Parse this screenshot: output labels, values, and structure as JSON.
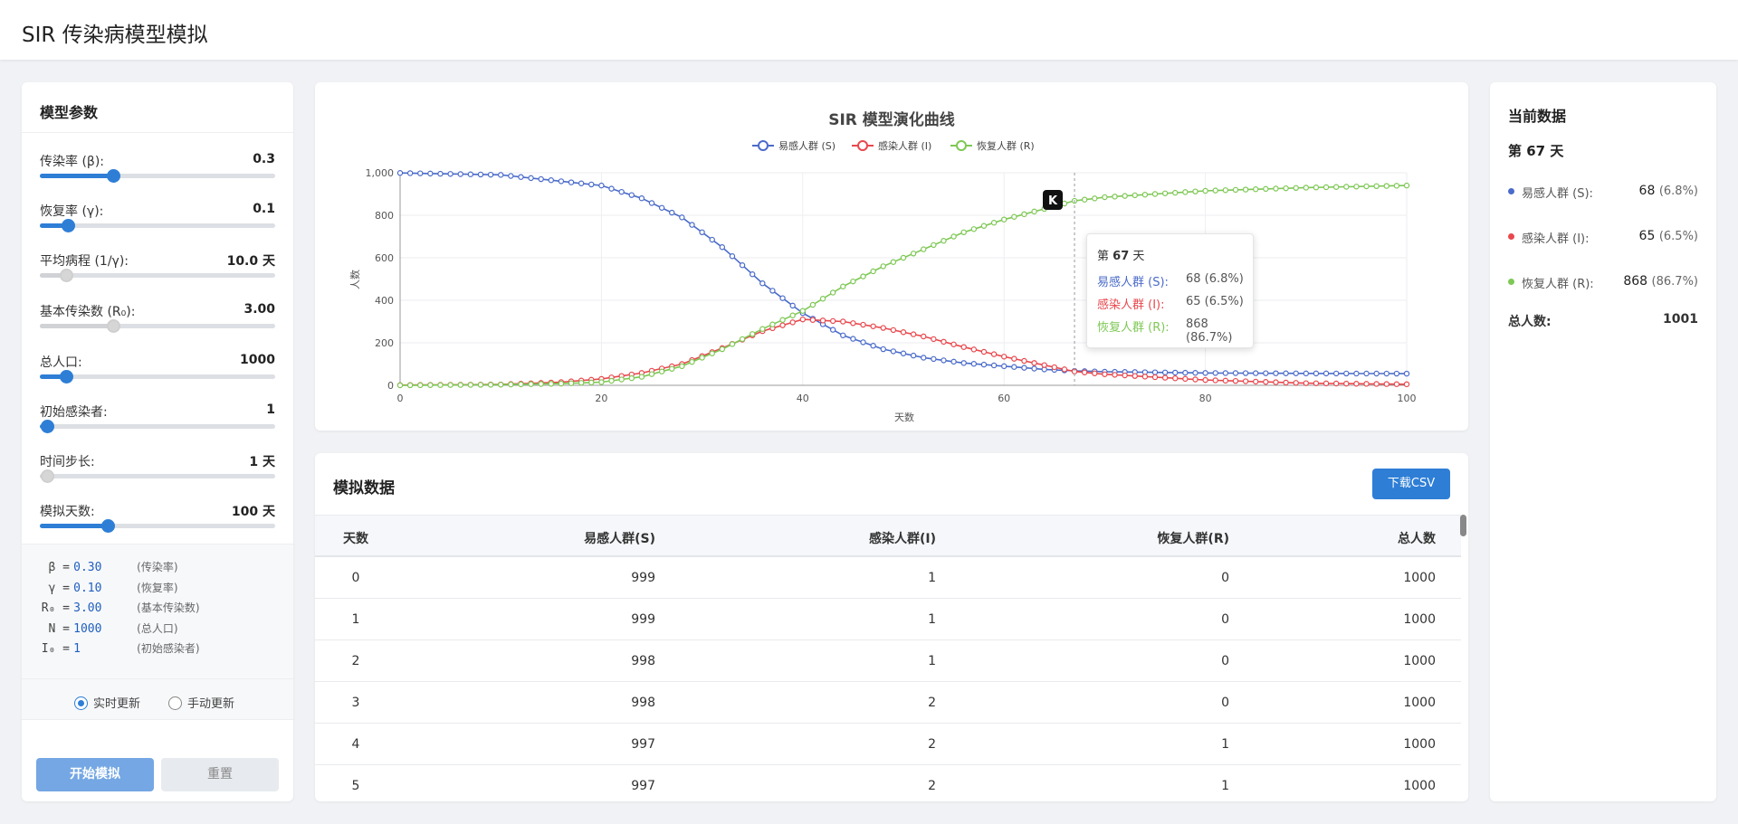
{
  "app": {
    "title": "SIR 传染病模型模拟"
  },
  "params": {
    "title": "模型参数",
    "items": [
      {
        "label": "传染率 (β):",
        "value": "0.3",
        "fraction": 0.31,
        "disabled": false
      },
      {
        "label": "恢复率 (γ):",
        "value": "0.1",
        "fraction": 0.12,
        "disabled": false
      },
      {
        "label": "平均病程 (1/γ):",
        "value": "10.0 天",
        "fraction": 0.11,
        "disabled": true
      },
      {
        "label": "基本传染数 (R₀):",
        "value": "3.00",
        "fraction": 0.31,
        "disabled": true
      },
      {
        "label": "总人口:",
        "value": "1000",
        "fraction": 0.11,
        "disabled": false
      },
      {
        "label": "初始感染者:",
        "value": "1",
        "fraction": 0.03,
        "disabled": false
      },
      {
        "label": "时间步长:",
        "value": "1 天",
        "fraction": 0.03,
        "disabled": true
      },
      {
        "label": "模拟天数:",
        "value": "100 天",
        "fraction": 0.29,
        "disabled": false
      }
    ],
    "equations": [
      {
        "sym": "β =",
        "val": "0.30",
        "desc": "(传染率)"
      },
      {
        "sym": "γ =",
        "val": "0.10",
        "desc": "(恢复率)"
      },
      {
        "sym": "R₀ =",
        "val": "3.00",
        "desc": "(基本传染数)"
      },
      {
        "sym": "N =",
        "val": "1000",
        "desc": "(总人口)"
      },
      {
        "sym": "I₀ =",
        "val": "1",
        "desc": "(初始感染者)"
      }
    ],
    "mode_realtime": "实时更新",
    "mode_manual": "手动更新",
    "start_label": "开始模拟",
    "reset_label": "重置"
  },
  "chart_data": {
    "type": "line",
    "title": "SIR 模型演化曲线",
    "xlabel": "天数",
    "ylabel": "人数",
    "xlim": [
      0,
      100
    ],
    "ylim": [
      0,
      1000
    ],
    "x_ticks": [
      "0",
      "20",
      "40",
      "60",
      "80",
      "100"
    ],
    "y_ticks": [
      "0",
      "200",
      "400",
      "600",
      "800",
      "1,000"
    ],
    "legend_position": "top-center",
    "series": [
      {
        "name": "易感人群 (S)",
        "color": "#4a6bc9",
        "x": [
          0,
          10,
          20,
          24,
          28,
          32,
          36,
          40,
          44,
          48,
          52,
          56,
          60,
          64,
          67,
          70,
          80,
          90,
          100
        ],
        "values": [
          999,
          990,
          940,
          880,
          790,
          650,
          480,
          340,
          235,
          170,
          130,
          105,
          90,
          75,
          68,
          64,
          58,
          56,
          55
        ]
      },
      {
        "name": "感染人群 (I)",
        "color": "#e8484d",
        "x": [
          0,
          10,
          16,
          20,
          24,
          28,
          32,
          36,
          40,
          44,
          48,
          52,
          56,
          60,
          64,
          67,
          70,
          80,
          90,
          100
        ],
        "values": [
          1,
          4,
          15,
          30,
          58,
          100,
          175,
          255,
          310,
          300,
          270,
          230,
          180,
          135,
          95,
          65,
          52,
          25,
          10,
          5
        ]
      },
      {
        "name": "恢复人群 (R)",
        "color": "#7ec855",
        "x": [
          0,
          10,
          16,
          20,
          24,
          28,
          32,
          36,
          40,
          44,
          48,
          52,
          56,
          60,
          64,
          67,
          70,
          80,
          90,
          100
        ],
        "values": [
          0,
          3,
          8,
          15,
          40,
          90,
          170,
          265,
          350,
          465,
          560,
          640,
          720,
          780,
          830,
          868,
          885,
          915,
          930,
          940
        ]
      }
    ],
    "hover_day": 67,
    "hover_marker": "K"
  },
  "tooltip": {
    "day_prefix": "第",
    "day": "67",
    "day_suffix": "天",
    "rows": [
      {
        "name": "易感人群 (S):",
        "value": "68 (6.8%)",
        "color": "#4a6bc9"
      },
      {
        "name": "感染人群 (I):",
        "value": "65 (6.5%)",
        "color": "#e8484d"
      },
      {
        "name": "恢复人群 (R):",
        "value": "868 (86.7%)",
        "color": "#7ec855"
      }
    ]
  },
  "table": {
    "title": "模拟数据",
    "download_label": "下载CSV",
    "headers": [
      "天数",
      "易感人群(S)",
      "感染人群(I)",
      "恢复人群(R)",
      "总人数"
    ],
    "rows": [
      [
        "0",
        "999",
        "1",
        "0",
        "1000"
      ],
      [
        "1",
        "999",
        "1",
        "0",
        "1000"
      ],
      [
        "2",
        "998",
        "1",
        "0",
        "1000"
      ],
      [
        "3",
        "998",
        "2",
        "0",
        "1000"
      ],
      [
        "4",
        "997",
        "2",
        "1",
        "1000"
      ],
      [
        "5",
        "997",
        "2",
        "1",
        "1000"
      ]
    ]
  },
  "current": {
    "title": "当前数据",
    "day_label": "第 67 天",
    "items": [
      {
        "name": "易感人群 (S):",
        "value": "68",
        "pct": "(6.8%)",
        "color": "#4a6bc9"
      },
      {
        "name": "感染人群 (I):",
        "value": "65",
        "pct": "(6.5%)",
        "color": "#e8484d"
      },
      {
        "name": "恢复人群 (R):",
        "value": "868",
        "pct": "(86.7%)",
        "color": "#7ec855"
      }
    ],
    "total_label": "总人数:",
    "total_value": "1001"
  }
}
